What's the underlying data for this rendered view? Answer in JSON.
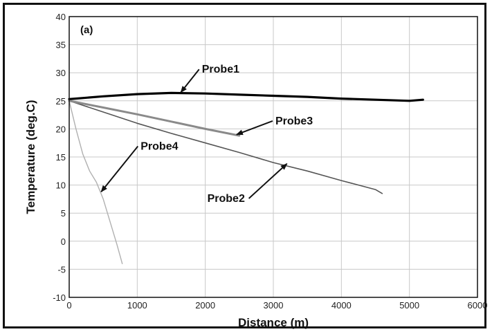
{
  "chart_data": {
    "type": "line",
    "panel_label": "(a)",
    "xlabel": "Distance (m)",
    "ylabel": "Temperature (deg.C)",
    "xlim": [
      0,
      6000
    ],
    "ylim": [
      -10,
      40
    ],
    "xticks": [
      "0",
      "1000",
      "2000",
      "3000",
      "4000",
      "5000",
      "6000"
    ],
    "yticks": [
      "-10",
      "-5",
      "0",
      "5",
      "10",
      "15",
      "20",
      "25",
      "30",
      "35",
      "40"
    ],
    "grid": true,
    "series": [
      {
        "name": "Probe1",
        "color": "#000000",
        "x": [
          0,
          500,
          1000,
          1500,
          2000,
          2500,
          3000,
          3500,
          4000,
          4500,
          5000,
          5200
        ],
        "y": [
          25.3,
          25.8,
          26.2,
          26.4,
          26.3,
          26.1,
          25.9,
          25.7,
          25.4,
          25.2,
          25.0,
          25.2
        ]
      },
      {
        "name": "Probe2",
        "color": "#555555",
        "x": [
          0,
          500,
          1000,
          1500,
          2000,
          2500,
          3000,
          3500,
          4000,
          4500,
          4600
        ],
        "y": [
          25.0,
          23.0,
          21.0,
          19.2,
          17.5,
          15.8,
          14.0,
          12.5,
          10.8,
          9.2,
          8.5
        ]
      },
      {
        "name": "Probe3",
        "color": "#8a8a8a",
        "x": [
          0,
          500,
          1000,
          1500,
          2000,
          2500
        ],
        "y": [
          25.0,
          23.8,
          22.6,
          21.3,
          20.0,
          18.8
        ]
      },
      {
        "name": "Probe4",
        "color": "#b0b0b0",
        "x": [
          0,
          100,
          200,
          300,
          400,
          500,
          600,
          700,
          780
        ],
        "y": [
          25.0,
          20.0,
          15.5,
          12.5,
          10.5,
          7.5,
          3.5,
          -0.5,
          -4.0
        ]
      }
    ],
    "annotations": [
      {
        "text": "Probe1",
        "series": "Probe1",
        "text_x": 1950,
        "text_y": 30,
        "point_x": 1640,
        "point_y": 26.5
      },
      {
        "text": "Probe3",
        "series": "Probe3",
        "text_x": 3030,
        "text_y": 20.8,
        "point_x": 2460,
        "point_y": 19.0
      },
      {
        "text": "Probe4",
        "series": "Probe4",
        "text_x": 1050,
        "text_y": 16.3,
        "point_x": 470,
        "point_y": 8.8
      },
      {
        "text": "Probe2",
        "series": "Probe2",
        "text_x": 2030,
        "text_y": 7.0,
        "point_x": 3200,
        "point_y": 13.8
      }
    ]
  }
}
